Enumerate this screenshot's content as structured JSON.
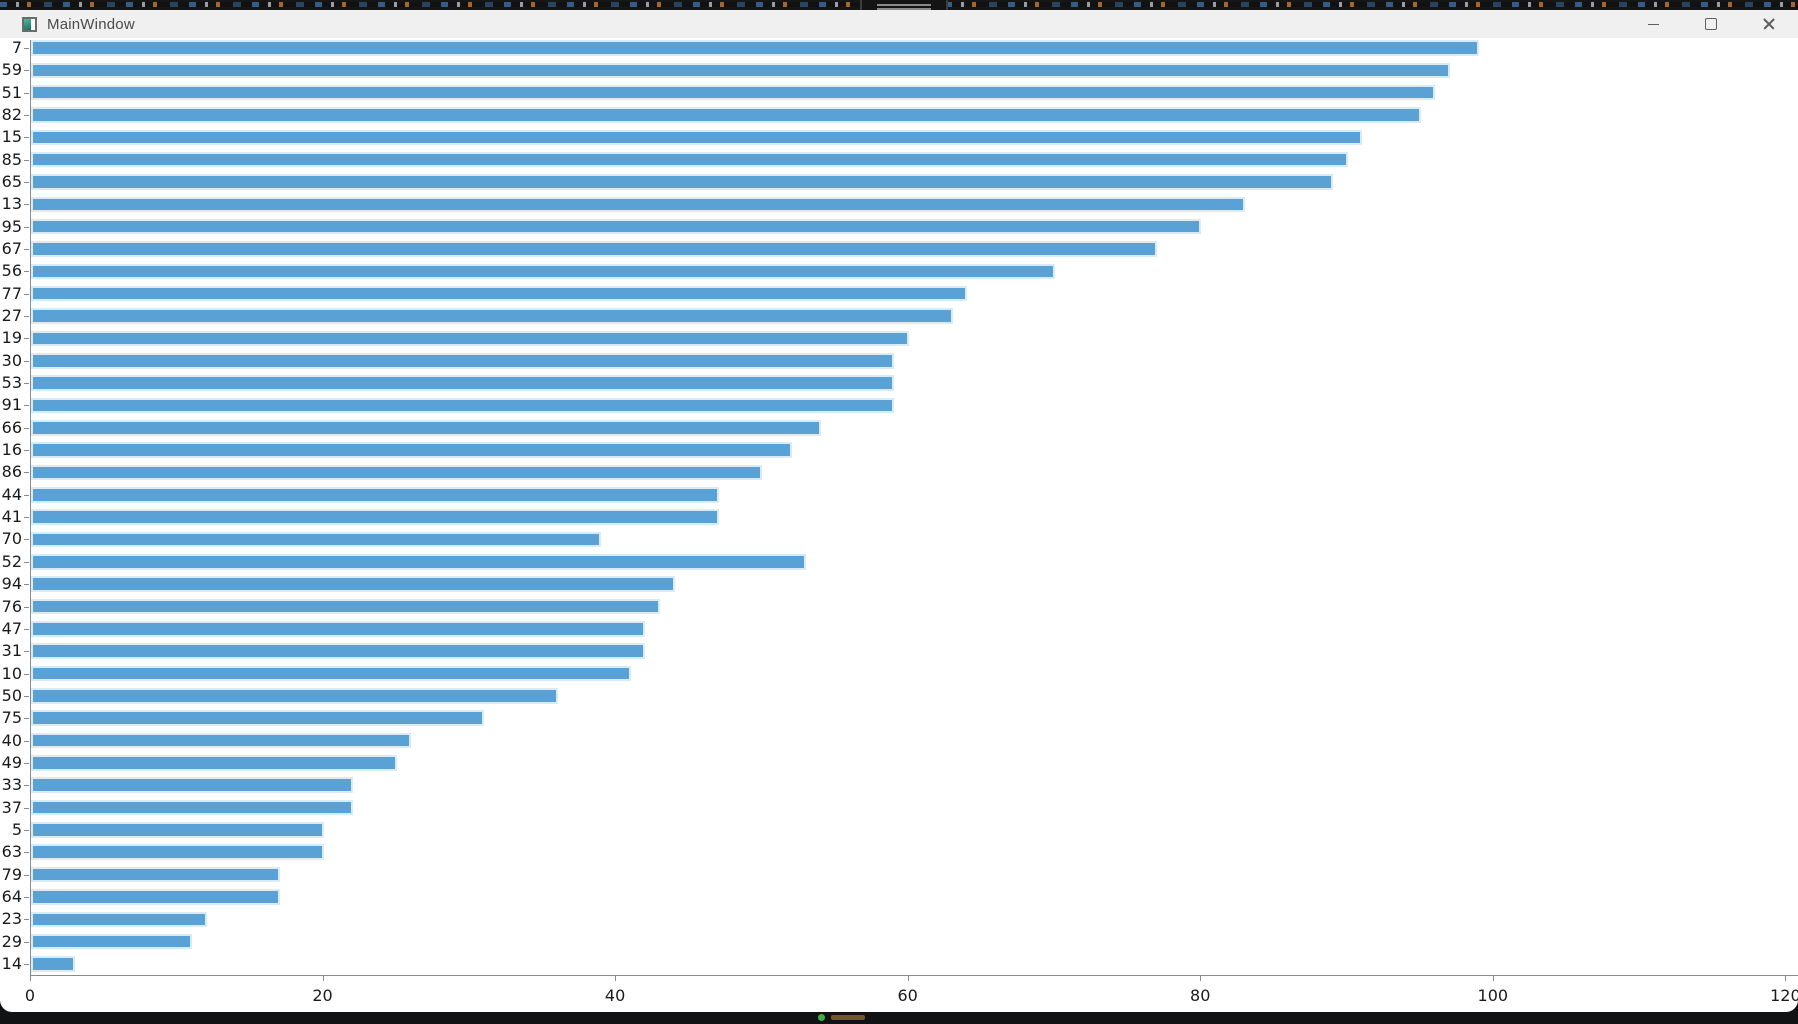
{
  "window": {
    "title": "MainWindow"
  },
  "chart_data": {
    "type": "bar",
    "orientation": "horizontal",
    "title": "",
    "xlabel": "",
    "ylabel": "",
    "grid": false,
    "legend": null,
    "xlim": [
      0,
      120
    ],
    "x_ticks": [
      "0",
      "20",
      "40",
      "60",
      "80",
      "100",
      "120"
    ],
    "bar_color": "#5aa2d5",
    "bar_edge_color": "#d9ebf7",
    "categories": [
      "7",
      "59",
      "51",
      "82",
      "15",
      "85",
      "65",
      "13",
      "95",
      "67",
      "56",
      "77",
      "27",
      "19",
      "30",
      "53",
      "91",
      "66",
      "16",
      "86",
      "44",
      "41",
      "70",
      "52",
      "94",
      "76",
      "47",
      "31",
      "10",
      "50",
      "75",
      "40",
      "49",
      "33",
      "37",
      "5",
      "63",
      "79",
      "64",
      "23",
      "29",
      "14"
    ],
    "values": [
      99,
      97,
      96,
      95,
      91,
      90,
      89,
      83,
      80,
      77,
      70,
      64,
      63,
      60,
      59,
      59,
      59,
      54,
      52,
      50,
      47,
      47,
      39,
      53,
      44,
      43,
      42,
      42,
      41,
      36,
      31,
      26,
      25,
      22,
      22,
      20,
      20,
      17,
      17,
      12,
      11,
      3
    ]
  }
}
